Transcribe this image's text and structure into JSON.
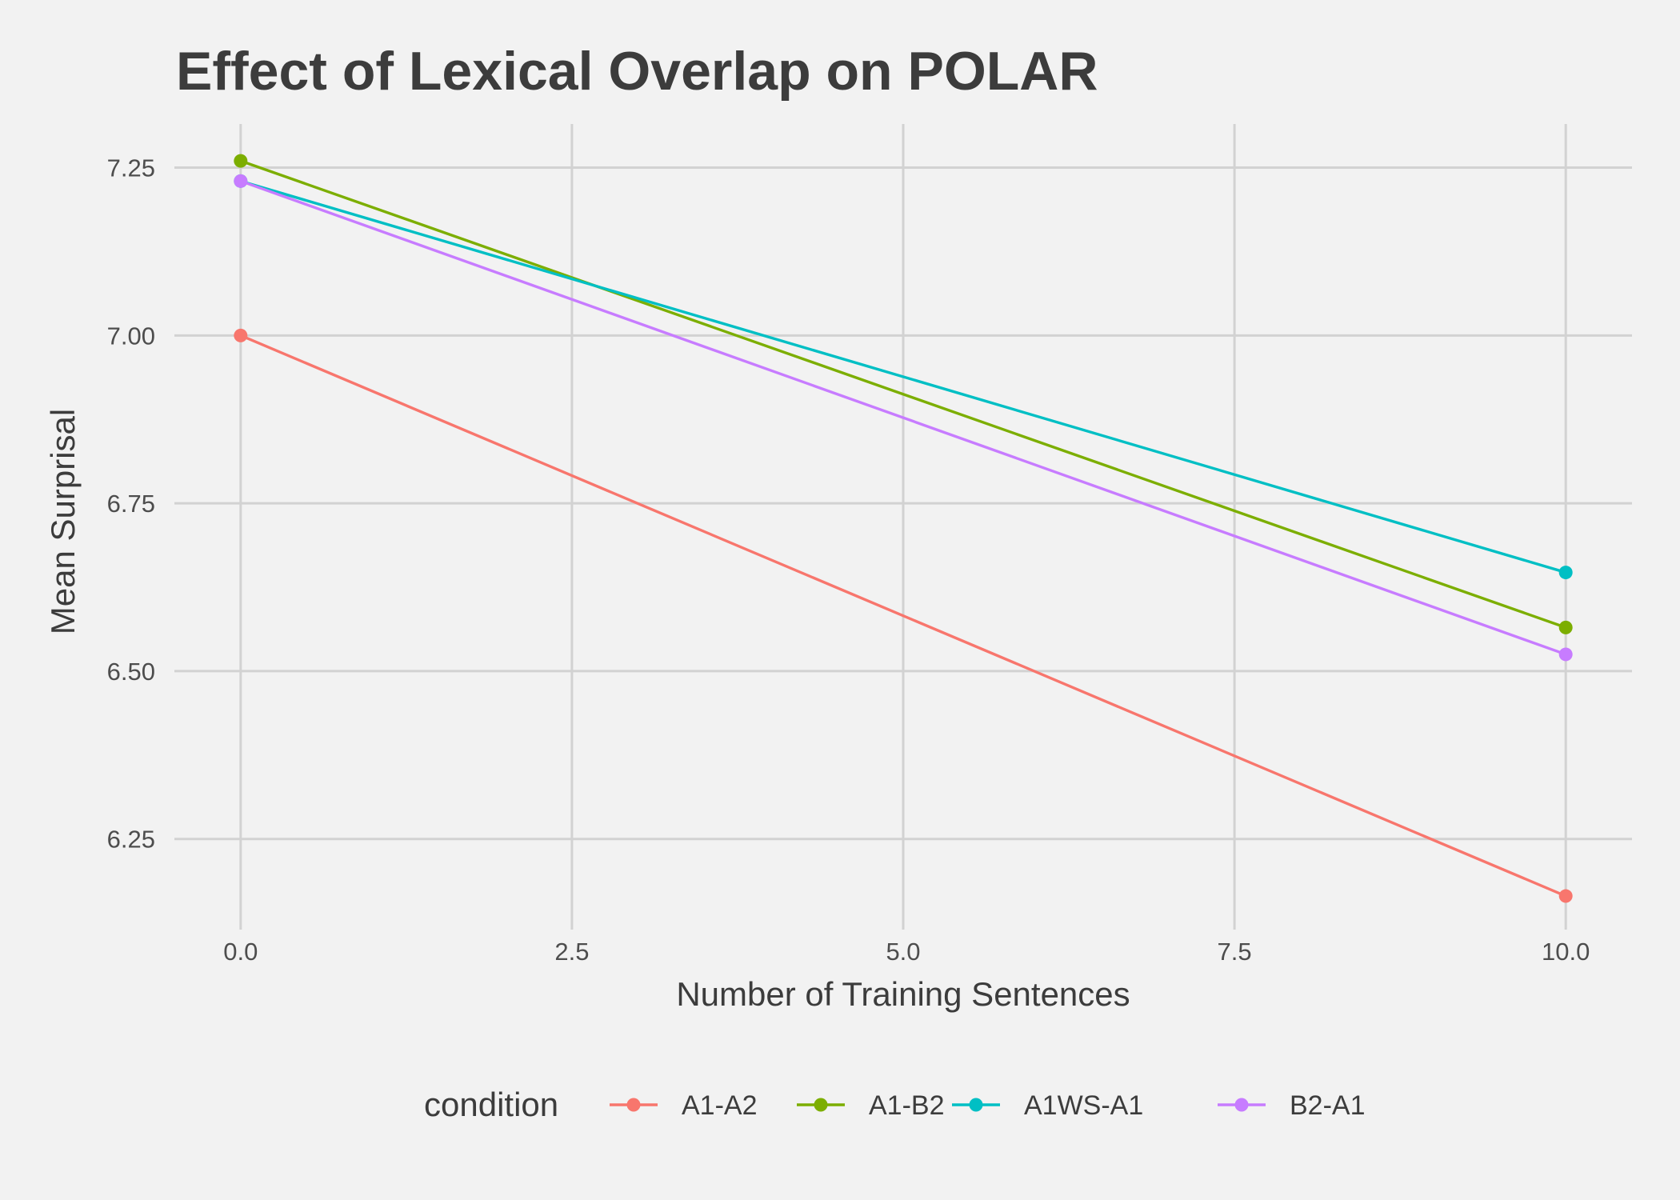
{
  "chart_data": {
    "type": "line",
    "title": "Effect of Lexical Overlap on POLAR",
    "xlabel": "Number of Training Sentences",
    "ylabel": "Mean Surprisal",
    "x": [
      0,
      10
    ],
    "xlim": [
      -0.5,
      10.5
    ],
    "ylim": [
      6.115,
      7.315
    ],
    "xticks": [
      0,
      2.5,
      5,
      7.5,
      10
    ],
    "xtick_labels": [
      "0.0",
      "2.5",
      "5.0",
      "7.5",
      "10.0"
    ],
    "yticks": [
      6.25,
      6.5,
      6.75,
      7.0,
      7.25
    ],
    "ytick_labels": [
      "6.25",
      "6.50",
      "6.75",
      "7.00",
      "7.25"
    ],
    "grid": true,
    "legend": {
      "title": "condition",
      "position": "bottom"
    },
    "series": [
      {
        "name": "A1-A2",
        "color": "#f8766d",
        "values": [
          7.0,
          6.165
        ]
      },
      {
        "name": "A1-B2",
        "color": "#7cae00",
        "values": [
          7.26,
          6.565
        ]
      },
      {
        "name": "A1WS-A1",
        "color": "#00bfc4",
        "values": [
          7.23,
          6.647
        ]
      },
      {
        "name": "B2-A1",
        "color": "#c77cff",
        "values": [
          7.23,
          6.525
        ]
      }
    ]
  }
}
